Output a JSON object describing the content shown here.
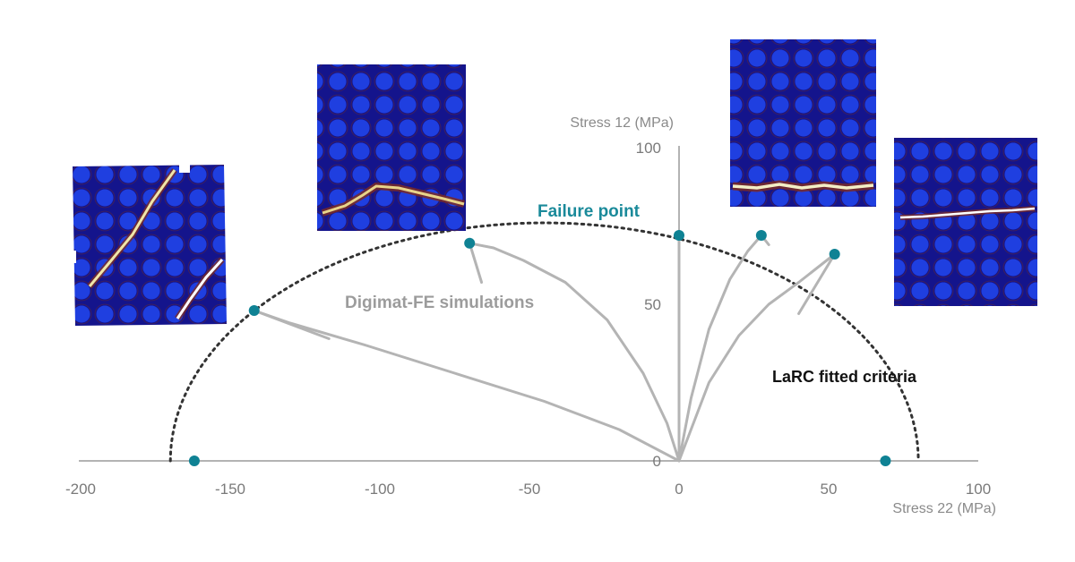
{
  "chart_data": {
    "type": "scatter",
    "title": "",
    "xlabel": "Stress 22 (MPa)",
    "ylabel": "Stress 12 (MPa)",
    "xlim": [
      -200,
      100
    ],
    "ylim": [
      0,
      100
    ],
    "x_ticks": [
      "-200",
      "-150",
      "-100",
      "-50",
      "0",
      "50",
      "100"
    ],
    "y_ticks": [
      "0",
      "50",
      "100"
    ],
    "failure_points": [
      {
        "x": -162,
        "y": 0
      },
      {
        "x": -142,
        "y": 48
      },
      {
        "x": -70,
        "y": 69.5
      },
      {
        "x": 0,
        "y": 72
      },
      {
        "x": 27.5,
        "y": 72
      },
      {
        "x": 52,
        "y": 66
      },
      {
        "x": 69,
        "y": 0
      }
    ],
    "criterion_curve": {
      "x_min": -170,
      "x_max": 80,
      "y_peak": 76
    },
    "loading_paths": [
      [
        [
          0,
          0
        ],
        [
          -4,
          12
        ],
        [
          -12,
          28
        ],
        [
          -24,
          45
        ],
        [
          -38,
          57
        ],
        [
          -52,
          64
        ],
        [
          -62,
          68
        ],
        [
          -70,
          69.5
        ]
      ],
      [
        [
          0,
          0
        ],
        [
          -20,
          10
        ],
        [
          -45,
          19
        ],
        [
          -75,
          28
        ],
        [
          -105,
          37
        ],
        [
          -130,
          44
        ],
        [
          -142,
          48
        ]
      ],
      [
        [
          0,
          0
        ],
        [
          0,
          72
        ]
      ],
      [
        [
          0,
          0
        ],
        [
          4,
          20
        ],
        [
          10,
          42
        ],
        [
          17,
          58
        ],
        [
          23,
          67
        ],
        [
          27.5,
          72
        ]
      ],
      [
        [
          0,
          0
        ],
        [
          10,
          25
        ],
        [
          20,
          40
        ],
        [
          30,
          50
        ],
        [
          40,
          57
        ],
        [
          52,
          66
        ]
      ]
    ],
    "annotations": {
      "failure_point": "Failure point",
      "simulations": "Digimat-FE simulations",
      "larc": "LaRC fitted criteria"
    },
    "colors": {
      "axis": "#b3b3b3",
      "path": "#b4b4b4",
      "point": "#0f8294",
      "criterion": "#333333",
      "failure_label": "#1a8a9a",
      "sim_label": "#9c9c9c",
      "micro_background": "#14148c",
      "micro_fiber": "#1f3fe0",
      "micro_crack": "#f0e6a8",
      "micro_matrix": "#7a2a24"
    }
  }
}
